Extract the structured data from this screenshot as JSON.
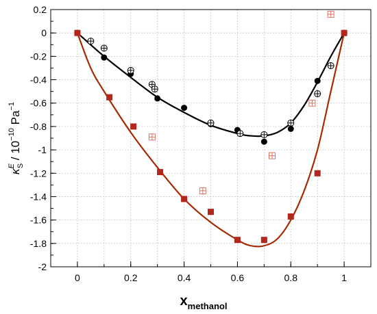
{
  "chart_data": {
    "type": "scatter",
    "xlabel": {
      "main": "x",
      "sub": "methanol"
    },
    "ylabel": {
      "symbol": "κ",
      "sup": "E",
      "sub": "S",
      "unit": " / 10",
      "exp": "−10",
      "unit2": " Pa",
      "unit_exp": "−1"
    },
    "xlim": [
      -0.1,
      1.1
    ],
    "ylim": [
      -2.0,
      0.2
    ],
    "x_ticks": [
      0,
      0.2,
      0.4,
      0.6,
      0.8,
      1
    ],
    "x_tick_labels": [
      "0",
      "0.2",
      "0.4",
      "0.6",
      "0.8",
      "1"
    ],
    "y_ticks": [
      0.2,
      0,
      -0.2,
      -0.4,
      -0.6,
      -0.8,
      -1,
      -1.2,
      -1.4,
      -1.6,
      -1.8,
      -2
    ],
    "y_tick_labels": [
      "0.2",
      "0",
      "-0.2",
      "-0.4",
      "-0.6",
      "-0.8",
      "-1",
      "-1.2",
      "-1.4",
      "-1.6",
      "-1.8",
      "-2"
    ],
    "grid": true,
    "series": [
      {
        "marker": "filled-circle",
        "color": "#000000",
        "points": [
          [
            0,
            0
          ],
          [
            0.1,
            -0.21
          ],
          [
            0.2,
            -0.35
          ],
          [
            0.3,
            -0.56
          ],
          [
            0.4,
            -0.64
          ],
          [
            0.5,
            -0.78
          ],
          [
            0.6,
            -0.83
          ],
          [
            0.7,
            -0.93
          ],
          [
            0.8,
            -0.82
          ],
          [
            0.9,
            -0.41
          ],
          [
            1.0,
            0
          ]
        ]
      },
      {
        "marker": "crossed-circle",
        "color": "#000000",
        "points": [
          [
            0.05,
            -0.07
          ],
          [
            0.1,
            -0.13
          ],
          [
            0.2,
            -0.32
          ],
          [
            0.28,
            -0.44
          ],
          [
            0.29,
            -0.48
          ],
          [
            0.5,
            -0.77
          ],
          [
            0.61,
            -0.86
          ],
          [
            0.7,
            -0.87
          ],
          [
            0.8,
            -0.77
          ],
          [
            0.9,
            -0.52
          ],
          [
            0.95,
            -0.28
          ]
        ]
      },
      {
        "marker": "filled-square",
        "color": "#b3261e",
        "points": [
          [
            0,
            0
          ],
          [
            0.12,
            -0.55
          ],
          [
            0.21,
            -0.8
          ],
          [
            0.31,
            -1.19
          ],
          [
            0.4,
            -1.42
          ],
          [
            0.5,
            -1.53
          ],
          [
            0.6,
            -1.77
          ],
          [
            0.7,
            -1.77
          ],
          [
            0.8,
            -1.57
          ],
          [
            0.9,
            -1.2
          ],
          [
            1.0,
            0
          ]
        ]
      },
      {
        "marker": "crossed-square",
        "color": "#e07060",
        "points": [
          [
            0.28,
            -0.89
          ],
          [
            0.47,
            -1.35
          ],
          [
            0.73,
            -1.05
          ],
          [
            0.88,
            -0.6
          ],
          [
            0.95,
            0.16
          ]
        ]
      }
    ],
    "fits": [
      {
        "color": "#000000",
        "points": [
          [
            0,
            0
          ],
          [
            0.1,
            -0.2
          ],
          [
            0.2,
            -0.38
          ],
          [
            0.3,
            -0.55
          ],
          [
            0.4,
            -0.68
          ],
          [
            0.5,
            -0.79
          ],
          [
            0.6,
            -0.86
          ],
          [
            0.65,
            -0.88
          ],
          [
            0.7,
            -0.88
          ],
          [
            0.75,
            -0.85
          ],
          [
            0.8,
            -0.77
          ],
          [
            0.85,
            -0.62
          ],
          [
            0.9,
            -0.42
          ],
          [
            0.95,
            -0.2
          ],
          [
            1.0,
            0
          ]
        ]
      },
      {
        "color": "#a52a00",
        "points": [
          [
            0,
            0
          ],
          [
            0.05,
            -0.3
          ],
          [
            0.1,
            -0.5
          ],
          [
            0.2,
            -0.85
          ],
          [
            0.3,
            -1.15
          ],
          [
            0.4,
            -1.42
          ],
          [
            0.5,
            -1.62
          ],
          [
            0.6,
            -1.77
          ],
          [
            0.65,
            -1.82
          ],
          [
            0.7,
            -1.82
          ],
          [
            0.75,
            -1.76
          ],
          [
            0.8,
            -1.6
          ],
          [
            0.85,
            -1.35
          ],
          [
            0.9,
            -1.0
          ],
          [
            0.95,
            -0.5
          ],
          [
            1.0,
            0
          ]
        ]
      }
    ]
  }
}
